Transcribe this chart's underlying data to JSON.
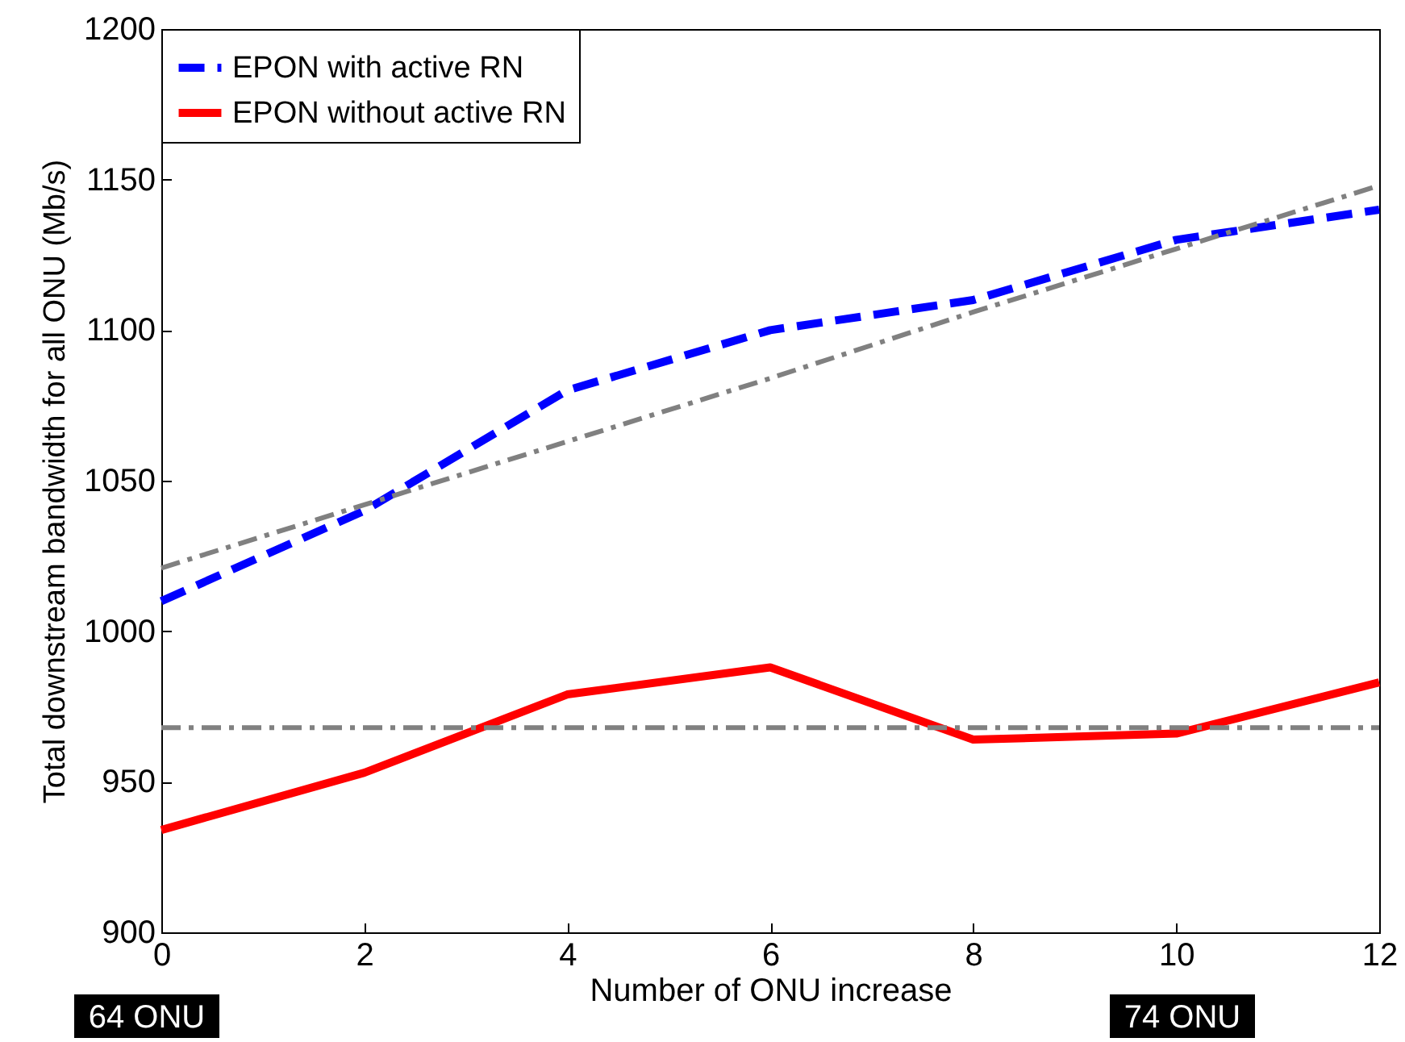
{
  "chart_data": {
    "type": "line",
    "xlabel": "Number of ONU increase",
    "ylabel": "Total downstream bandwidth for all ONU (Mb/s)",
    "x": [
      0,
      2,
      4,
      6,
      8,
      10,
      12
    ],
    "xlim": [
      0,
      12
    ],
    "xticks": [
      0,
      2,
      4,
      6,
      8,
      10,
      12
    ],
    "ylim": [
      900,
      1200
    ],
    "yticks": [
      900,
      950,
      1000,
      1050,
      1100,
      1150,
      1200
    ],
    "grid": false,
    "legend": "top left",
    "marker": "none",
    "series": [
      {
        "name": "EPON with active RN",
        "color": "#0000ff",
        "line_style": "dashed",
        "values": [
          1010,
          1040,
          1080,
          1100,
          1110,
          1130,
          1140
        ]
      },
      {
        "name": "EPON without active RN",
        "color": "#ff0000",
        "line_style": "solid",
        "values": [
          934,
          953,
          979,
          988,
          964,
          966,
          983
        ]
      },
      {
        "type": "line",
        "color": "#808080",
        "line_style": "dashdot",
        "values": [
          1021,
          1042,
          1063,
          1084,
          1106,
          1127,
          1148
        ]
      },
      {
        "type": "line",
        "color": "#808080",
        "line_style": "dashdot",
        "values": [
          968,
          968,
          968,
          968,
          968,
          968,
          968
        ]
      }
    ],
    "annotations": [
      "64 ONU",
      "74 ONU"
    ]
  }
}
